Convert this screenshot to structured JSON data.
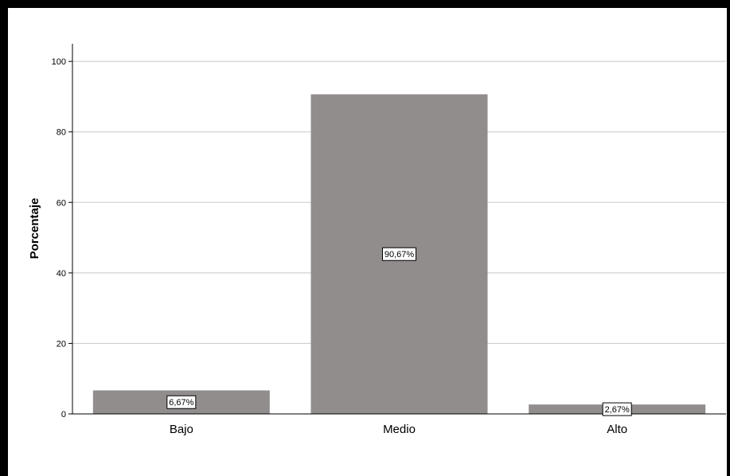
{
  "chart_data": {
    "type": "bar",
    "title": "",
    "xlabel": "",
    "ylabel": "Porcentaje",
    "categories": [
      "Bajo",
      "Medio",
      "Alto"
    ],
    "values": [
      6.67,
      90.67,
      2.67
    ],
    "data_labels": [
      "6,67%",
      "90,67%",
      "2,67%"
    ],
    "ylim": [
      0,
      105
    ],
    "yticks": [
      0,
      20,
      40,
      60,
      80,
      100
    ],
    "grid": true,
    "legend": "none",
    "colors": {
      "bar": "#918d8c",
      "grid": "#c8c8c8",
      "axis": "#000000",
      "frame": "#000000"
    }
  }
}
